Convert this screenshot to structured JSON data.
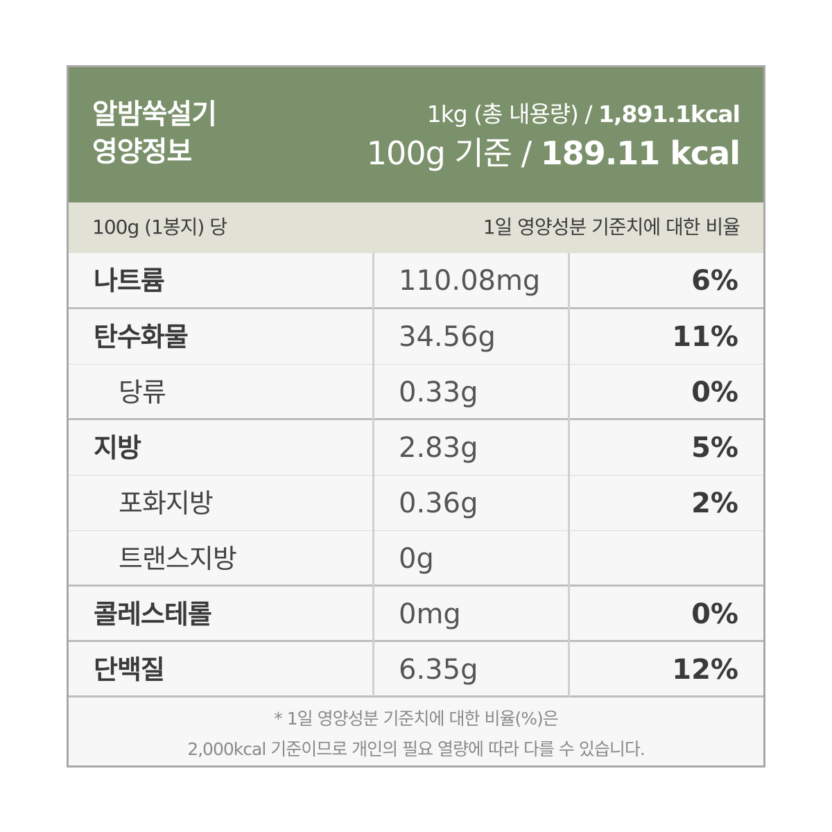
{
  "header": {
    "title_line1": "알밤쑥설기",
    "title_line2": "영양정보",
    "total_prefix": "1kg (총 내용량) / ",
    "total_kcal": "1,891.1kcal",
    "basis_prefix": "100g 기준 / ",
    "basis_kcal": "189.11 kcal"
  },
  "subheader": {
    "left": "100g (1봉지) 당",
    "right": "1일 영양성분 기준치에 대한 비율"
  },
  "rows": [
    {
      "name": "나트륨",
      "amount": "110.08mg",
      "percent": "6%"
    },
    {
      "name": "탄수화물",
      "amount": "34.56g",
      "percent": "11%"
    },
    {
      "name": "당류",
      "amount": "0.33g",
      "percent": "0%"
    },
    {
      "name": "지방",
      "amount": "2.83g",
      "percent": "5%"
    },
    {
      "name": "포화지방",
      "amount": "0.36g",
      "percent": "2%"
    },
    {
      "name": "트랜스지방",
      "amount": "0g",
      "percent": ""
    },
    {
      "name": "콜레스테롤",
      "amount": "0mg",
      "percent": "0%"
    },
    {
      "name": "단백질",
      "amount": "6.35g",
      "percent": "12%"
    }
  ],
  "footer": {
    "line1": "* 1일 영양성분 기준치에 대한 비율(%)은",
    "line2": "2,000kcal 기준이므로 개인의 필요 열량에 따라 다를 수 있습니다."
  },
  "colors": {
    "header_bg": "#7b916b",
    "subheader_bg": "#e1e1d6",
    "row_bg": "#f7f7f7",
    "border": "#a8a8a8"
  }
}
